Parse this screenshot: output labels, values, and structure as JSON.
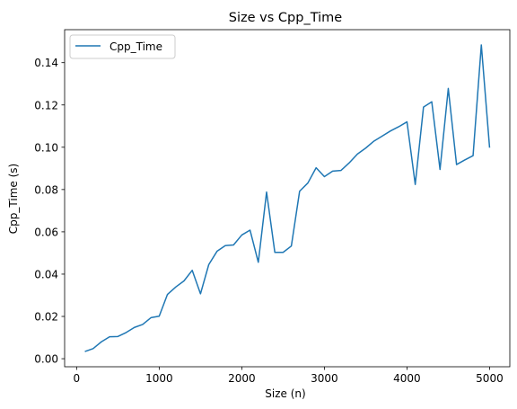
{
  "chart_data": {
    "type": "line",
    "title": "Size vs Cpp_Time",
    "xlabel": "Size (n)",
    "ylabel": "Cpp_Time (s)",
    "xlim": [
      -145,
      5245
    ],
    "ylim": [
      -0.0038,
      0.1556
    ],
    "xticks": [
      0,
      1000,
      2000,
      3000,
      4000,
      5000
    ],
    "xtick_labels": [
      "0",
      "1000",
      "2000",
      "3000",
      "4000",
      "5000"
    ],
    "yticks": [
      0.0,
      0.02,
      0.04,
      0.06,
      0.08,
      0.1,
      0.12,
      0.14
    ],
    "ytick_labels": [
      "0.00",
      "0.02",
      "0.04",
      "0.06",
      "0.08",
      "0.10",
      "0.12",
      "0.14"
    ],
    "grid": false,
    "legend_position": "top-left",
    "series": [
      {
        "name": "Cpp_Time",
        "color": "#1f77b4",
        "x": [
          100,
          200,
          300,
          400,
          500,
          600,
          700,
          800,
          900,
          1000,
          1100,
          1200,
          1300,
          1400,
          1500,
          1600,
          1700,
          1800,
          1900,
          2000,
          2100,
          2200,
          2300,
          2400,
          2500,
          2600,
          2700,
          2800,
          2900,
          3000,
          3100,
          3200,
          3300,
          3400,
          3500,
          3600,
          3700,
          3800,
          3900,
          4000,
          4100,
          4200,
          4300,
          4400,
          4500,
          4600,
          4700,
          4800,
          4900,
          5000
        ],
        "y": [
          0.0034,
          0.0048,
          0.008,
          0.0104,
          0.0105,
          0.0124,
          0.0148,
          0.0162,
          0.0194,
          0.0201,
          0.0304,
          0.0339,
          0.0368,
          0.0418,
          0.0307,
          0.0445,
          0.0508,
          0.0535,
          0.0538,
          0.0585,
          0.0608,
          0.0456,
          0.0788,
          0.0503,
          0.0503,
          0.0533,
          0.0792,
          0.0831,
          0.0903,
          0.0861,
          0.0887,
          0.089,
          0.0926,
          0.0968,
          0.0996,
          0.1029,
          0.1053,
          0.1077,
          0.1097,
          0.112,
          0.0824,
          0.119,
          0.1215,
          0.0895,
          0.1278,
          0.0918,
          0.094,
          0.096,
          0.1484,
          0.0998
        ]
      }
    ]
  }
}
